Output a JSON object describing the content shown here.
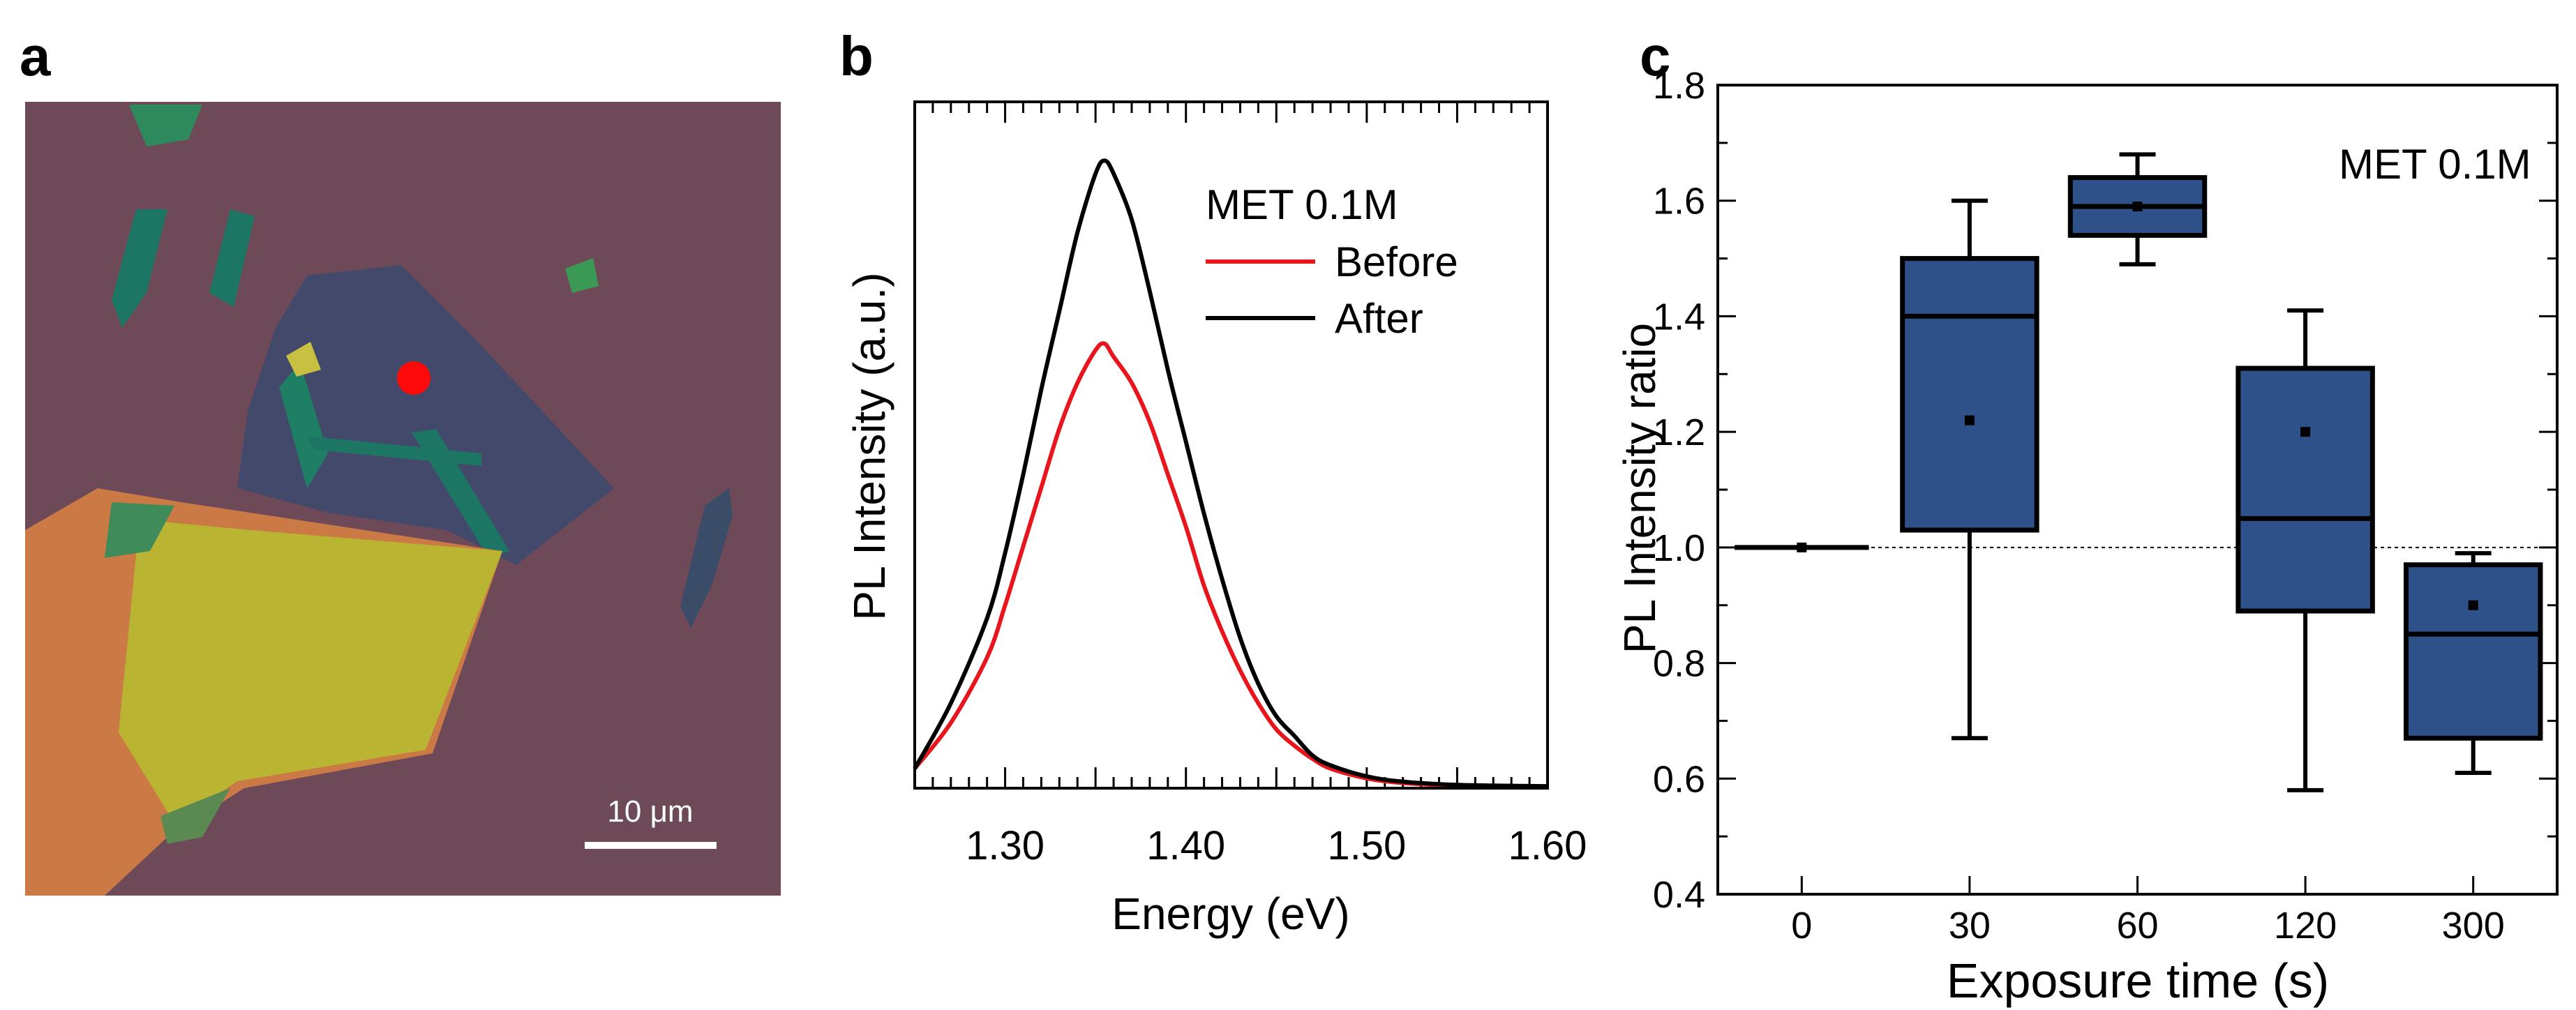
{
  "panels": {
    "a": {
      "letter": "a",
      "scale_bar_label": "10 μm"
    },
    "b": {
      "letter": "b"
    },
    "c": {
      "letter": "c"
    }
  },
  "colors": {
    "substrate": "#6e4a58",
    "flake_blue": "#43496a",
    "flake_green": "#1d7563",
    "flake_yellow": "#bab433",
    "flake_orange": "#cc7a45",
    "marker_red": "#ff0a0a",
    "box_fill": "#2d5188",
    "before": "#e8161c",
    "after": "#000000"
  },
  "chart_data": [
    {
      "type": "line",
      "panel": "b",
      "title": "",
      "xlabel": "Energy (eV)",
      "ylabel": "PL Intensity (a.u.)",
      "xlim": [
        1.25,
        1.6
      ],
      "ylim": [
        0,
        1.05
      ],
      "xticks": [
        1.3,
        1.4,
        1.5,
        1.6
      ],
      "xtick_labels": [
        "1.30",
        "1.40",
        "1.50",
        "1.60"
      ],
      "legend_title": "MET 0.1M",
      "legend_position": "top-right",
      "series": [
        {
          "name": "Before",
          "color": "#e8161c",
          "x": [
            1.25,
            1.27,
            1.29,
            1.3,
            1.31,
            1.32,
            1.33,
            1.34,
            1.35,
            1.355,
            1.36,
            1.37,
            1.38,
            1.39,
            1.4,
            1.41,
            1.42,
            1.43,
            1.44,
            1.45,
            1.46,
            1.47,
            1.48,
            1.5,
            1.52,
            1.55,
            1.6
          ],
          "y": [
            0.03,
            0.1,
            0.2,
            0.28,
            0.37,
            0.46,
            0.55,
            0.62,
            0.67,
            0.68,
            0.66,
            0.62,
            0.56,
            0.48,
            0.4,
            0.31,
            0.24,
            0.18,
            0.13,
            0.09,
            0.065,
            0.045,
            0.03,
            0.015,
            0.008,
            0.004,
            0.003
          ]
        },
        {
          "name": "After",
          "color": "#000000",
          "x": [
            1.25,
            1.27,
            1.29,
            1.3,
            1.31,
            1.32,
            1.33,
            1.34,
            1.35,
            1.355,
            1.36,
            1.37,
            1.38,
            1.39,
            1.4,
            1.41,
            1.42,
            1.43,
            1.44,
            1.45,
            1.46,
            1.47,
            1.48,
            1.5,
            1.52,
            1.55,
            1.6
          ],
          "y": [
            0.03,
            0.13,
            0.26,
            0.36,
            0.48,
            0.61,
            0.73,
            0.85,
            0.94,
            0.96,
            0.94,
            0.87,
            0.76,
            0.64,
            0.53,
            0.42,
            0.32,
            0.23,
            0.16,
            0.11,
            0.08,
            0.05,
            0.035,
            0.018,
            0.01,
            0.005,
            0.003
          ]
        }
      ]
    },
    {
      "type": "box",
      "panel": "c",
      "title": "",
      "xlabel": "Exposure time (s)",
      "ylabel": "PL Intensity ratio",
      "ylim": [
        0.4,
        1.8
      ],
      "yticks": [
        0.4,
        0.6,
        0.8,
        1.0,
        1.2,
        1.4,
        1.6,
        1.8
      ],
      "ytick_labels": [
        "0.4",
        "0.6",
        "0.8",
        "1.0",
        "1.2",
        "1.4",
        "1.6",
        "1.8"
      ],
      "reference_line": 1.0,
      "annotation": "MET 0.1M",
      "categories": [
        "0",
        "30",
        "60",
        "120",
        "300"
      ],
      "boxes": [
        {
          "min": 1.0,
          "q1": 1.0,
          "median": 1.0,
          "q3": 1.0,
          "max": 1.0,
          "mean": 1.0
        },
        {
          "min": 0.67,
          "q1": 1.03,
          "median": 1.4,
          "q3": 1.5,
          "max": 1.6,
          "mean": 1.22
        },
        {
          "min": 1.49,
          "q1": 1.54,
          "median": 1.59,
          "q3": 1.64,
          "max": 1.68,
          "mean": 1.59
        },
        {
          "min": 0.58,
          "q1": 0.89,
          "median": 1.05,
          "q3": 1.31,
          "max": 1.41,
          "mean": 1.2
        },
        {
          "min": 0.61,
          "q1": 0.67,
          "median": 0.85,
          "q3": 0.97,
          "max": 0.99,
          "mean": 0.9
        }
      ]
    }
  ]
}
